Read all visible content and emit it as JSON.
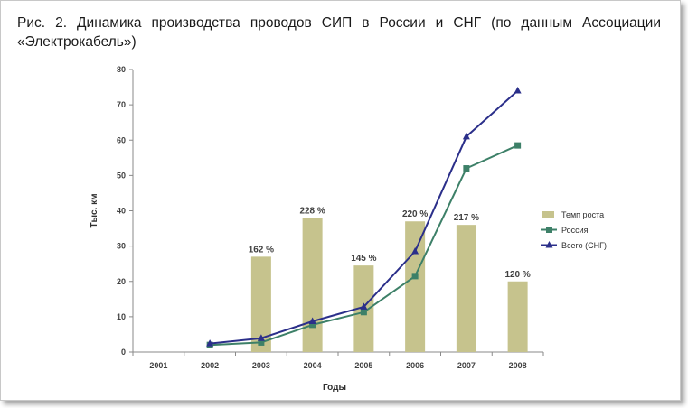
{
  "caption": "Рис. 2. Динамика производства проводов СИП в России и СНГ (по данным Ассоциации «Электрокабель»)",
  "chart_data": {
    "type": "bar+line",
    "title": "",
    "xlabel": "Годы",
    "ylabel": "Тыс. км",
    "ylim": [
      0,
      80
    ],
    "yticks": [
      0,
      10,
      20,
      30,
      40,
      50,
      60,
      70,
      80
    ],
    "categories": [
      "2001",
      "2002",
      "2003",
      "2004",
      "2005",
      "2006",
      "2007",
      "2008"
    ],
    "grid": false,
    "legend_position": "right",
    "colors": {
      "bars": "#c6c38d",
      "russia": "#3d8068",
      "total": "#2b2f8a"
    },
    "series": [
      {
        "name": "Темп роста",
        "kind": "bar",
        "values": [
          null,
          null,
          27,
          38,
          24.5,
          37,
          36,
          20
        ],
        "labels": [
          "",
          "",
          "162 %",
          "228 %",
          "145 %",
          "220 %",
          "217 %",
          "120 %"
        ]
      },
      {
        "name": "Россия",
        "kind": "line",
        "marker": "square",
        "values": [
          null,
          2,
          2.7,
          7.7,
          11.3,
          21.5,
          52,
          58.5
        ]
      },
      {
        "name": "Всего (СНГ)",
        "kind": "line",
        "marker": "triangle",
        "values": [
          null,
          2.4,
          3.9,
          8.7,
          12.8,
          28.5,
          61,
          74
        ]
      }
    ]
  }
}
